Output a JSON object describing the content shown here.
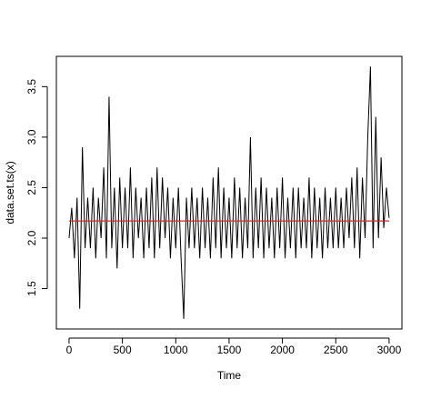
{
  "chart_data": {
    "type": "line",
    "xlabel": "Time",
    "ylabel": "data.set.ts(x)",
    "xlim": [
      -119,
      3120
    ],
    "ylim": [
      1.1,
      3.8
    ],
    "xticks": [
      0,
      500,
      1000,
      1500,
      2000,
      2500,
      3000
    ],
    "yticks": [
      1.5,
      {
        "value": 2,
        "label": "2.0"
      },
      2.5,
      {
        "value": 3,
        "label": "3.0"
      },
      3.5
    ],
    "series": [
      {
        "color": "#000000",
        "x": [
          0,
          25,
          50,
          75,
          100,
          125,
          150,
          175,
          200,
          225,
          250,
          275,
          300,
          325,
          350,
          375,
          400,
          425,
          450,
          475,
          500,
          525,
          550,
          575,
          600,
          625,
          650,
          675,
          700,
          725,
          750,
          775,
          800,
          825,
          850,
          875,
          900,
          925,
          950,
          975,
          1000,
          1025,
          1050,
          1075,
          1100,
          1125,
          1150,
          1175,
          1200,
          1225,
          1250,
          1275,
          1300,
          1325,
          1350,
          1375,
          1400,
          1425,
          1450,
          1475,
          1500,
          1525,
          1550,
          1575,
          1600,
          1625,
          1650,
          1675,
          1700,
          1725,
          1750,
          1775,
          1800,
          1825,
          1850,
          1875,
          1900,
          1925,
          1950,
          1975,
          2000,
          2025,
          2050,
          2075,
          2100,
          2125,
          2150,
          2175,
          2200,
          2225,
          2250,
          2275,
          2300,
          2325,
          2350,
          2375,
          2400,
          2425,
          2450,
          2475,
          2500,
          2525,
          2550,
          2575,
          2600,
          2625,
          2650,
          2675,
          2700,
          2725,
          2750,
          2775,
          2800,
          2825,
          2850,
          2875,
          2900,
          2925,
          2950,
          2975,
          3000
        ],
        "values": [
          2.0,
          2.3,
          1.8,
          2.4,
          1.3,
          2.9,
          1.9,
          2.4,
          1.9,
          2.5,
          1.8,
          2.4,
          2.0,
          2.7,
          1.8,
          3.4,
          1.9,
          2.5,
          1.7,
          2.6,
          1.9,
          2.5,
          1.9,
          2.7,
          1.8,
          2.5,
          2.0,
          2.4,
          1.8,
          2.5,
          1.9,
          2.6,
          1.8,
          2.7,
          1.9,
          2.6,
          2.0,
          2.5,
          1.8,
          2.4,
          1.9,
          2.5,
          1.8,
          1.2,
          2.4,
          1.9,
          2.5,
          1.9,
          2.4,
          1.8,
          2.5,
          1.9,
          2.4,
          1.8,
          2.6,
          1.9,
          2.7,
          1.8,
          2.5,
          1.9,
          2.4,
          1.8,
          2.6,
          1.9,
          2.5,
          1.8,
          2.4,
          1.9,
          3.0,
          1.8,
          2.5,
          1.9,
          2.6,
          1.8,
          2.5,
          1.9,
          2.4,
          1.8,
          2.5,
          1.9,
          2.6,
          1.8,
          2.4,
          1.9,
          2.5,
          1.8,
          2.5,
          1.9,
          2.4,
          1.9,
          2.6,
          1.8,
          2.5,
          1.9,
          2.4,
          1.8,
          2.5,
          1.9,
          2.4,
          1.9,
          2.5,
          1.9,
          2.4,
          1.9,
          2.5,
          2.0,
          2.6,
          1.9,
          2.7,
          1.8,
          2.6,
          2.0,
          3.0,
          3.7,
          1.9,
          3.2,
          2.0,
          2.8,
          2.1,
          2.5,
          2.2
        ]
      },
      {
        "color": "#d62728",
        "x": [
          0,
          3000
        ],
        "values": [
          2.17,
          2.17
        ]
      }
    ]
  }
}
